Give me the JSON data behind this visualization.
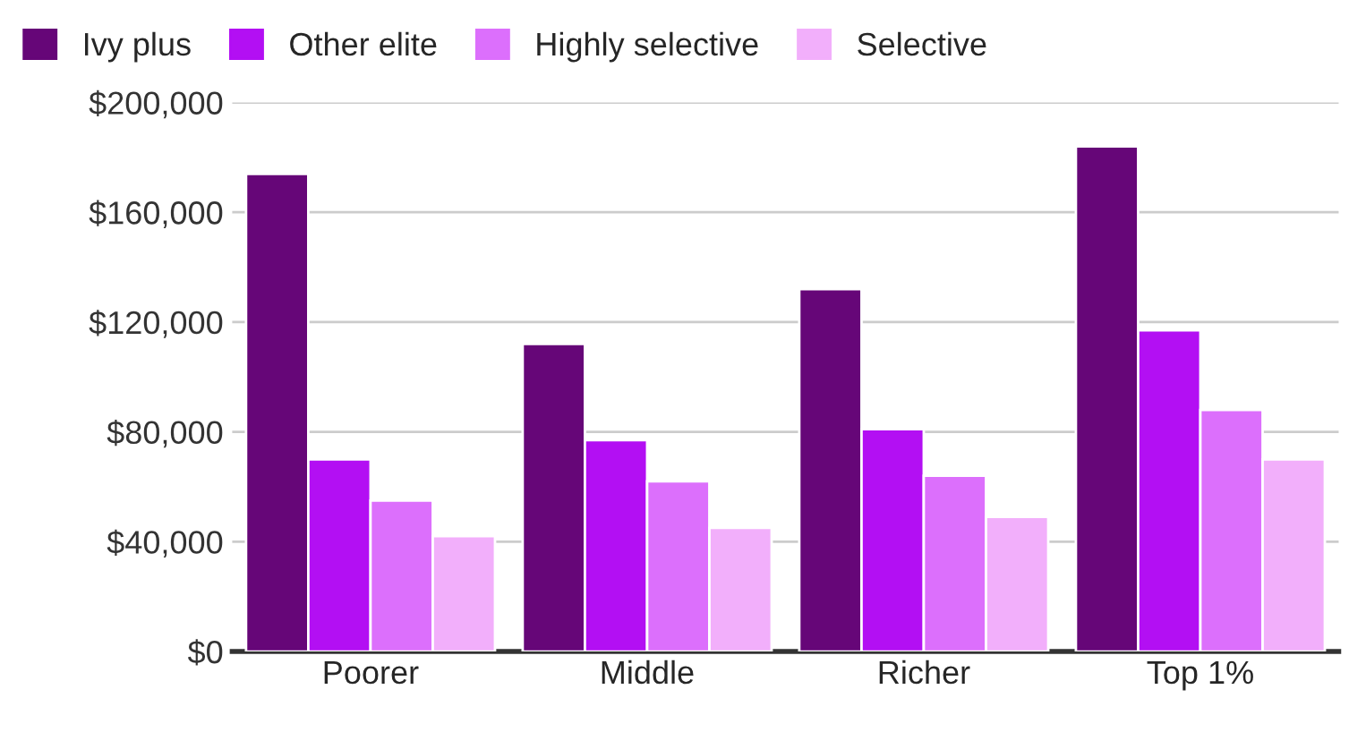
{
  "chart_data": {
    "type": "bar",
    "categories": [
      "Poorer",
      "Middle",
      "Richer",
      "Top 1%"
    ],
    "series": [
      {
        "name": "Ivy plus",
        "color": "#660678",
        "values": [
          174000,
          112000,
          132000,
          184000
        ]
      },
      {
        "name": "Other elite",
        "color": "#b30ff3",
        "values": [
          70000,
          77000,
          81000,
          117000
        ]
      },
      {
        "name": "Highly selective",
        "color": "#dc6ffc",
        "values": [
          55000,
          62000,
          64000,
          88000
        ]
      },
      {
        "name": "Selective",
        "color": "#f2affb",
        "values": [
          42000,
          45000,
          49000,
          70000
        ]
      }
    ],
    "ylim": [
      0,
      200000
    ],
    "yticks": [
      {
        "value": 0,
        "label": "$0"
      },
      {
        "value": 40000,
        "label": "$40,000"
      },
      {
        "value": 80000,
        "label": "$80,000"
      },
      {
        "value": 120000,
        "label": "$120,000"
      },
      {
        "value": 160000,
        "label": "$160,000"
      },
      {
        "value": 200000,
        "label": "$200,000"
      }
    ],
    "grid": "y",
    "legend": "top left"
  }
}
